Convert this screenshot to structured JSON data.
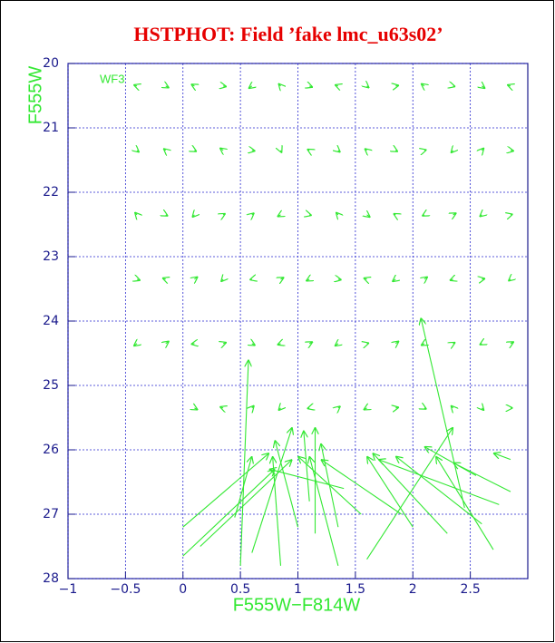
{
  "chart_data": {
    "type": "quiver",
    "title": "HSTPHOT: Field ’fake lmc_u63s02’",
    "x_label": "F555W−F814W",
    "y_label": "F555W",
    "annotation": "WF3",
    "color": "#33e833",
    "grid": true,
    "xlim": [
      -1,
      3
    ],
    "ylim": [
      28,
      20
    ],
    "xticks": [
      {
        "value": -1,
        "label": "−1"
      },
      {
        "value": -0.5,
        "label": "−0.5"
      },
      0,
      0.5,
      1,
      1.5,
      2,
      2.5
    ],
    "yticks": [
      20,
      21,
      22,
      23,
      24,
      25,
      26,
      27,
      28
    ],
    "x": [
      -0.4,
      -0.15,
      0.1,
      0.35,
      0.6,
      0.85,
      1.1,
      1.35,
      1.6,
      1.85,
      2.1,
      2.35,
      2.6,
      2.85,
      -0.4,
      -0.15,
      0.1,
      0.35,
      0.6,
      0.85,
      1.1,
      1.35,
      1.6,
      1.85,
      2.1,
      2.35,
      2.6,
      2.85,
      -0.4,
      -0.15,
      0.1,
      0.35,
      0.6,
      0.85,
      1.1,
      1.35,
      1.6,
      1.85,
      2.1,
      2.35,
      2.6,
      2.85,
      -0.4,
      -0.15,
      0.1,
      0.35,
      0.6,
      0.85,
      1.1,
      1.35,
      1.6,
      1.85,
      2.1,
      2.35,
      2.6,
      2.85,
      -0.4,
      -0.15,
      0.1,
      0.35,
      0.6,
      0.85,
      1.1,
      1.35,
      1.6,
      1.85,
      2.1,
      2.35,
      2.6,
      2.85,
      0.1,
      0.35,
      0.6,
      0.85,
      1.1,
      1.35,
      1.6,
      1.85,
      2.1,
      2.35,
      2.6,
      2.85,
      0.5,
      2.45,
      0.0,
      0.0,
      0.15,
      0.85,
      0.6,
      1.0,
      1.35,
      1.15,
      1.55,
      1.35,
      1.4,
      1.6,
      2.0,
      2.7,
      2.75,
      2.6,
      2.85,
      2.55,
      2.85,
      1.9,
      0.45,
      1.1,
      2.3
    ],
    "y": [
      20.35,
      20.35,
      20.35,
      20.35,
      20.35,
      20.35,
      20.35,
      20.35,
      20.35,
      20.35,
      20.35,
      20.35,
      20.35,
      20.35,
      21.35,
      21.35,
      21.35,
      21.35,
      21.35,
      21.35,
      21.35,
      21.35,
      21.35,
      21.35,
      21.35,
      21.35,
      21.35,
      21.35,
      22.35,
      22.35,
      22.35,
      22.35,
      22.35,
      22.35,
      22.35,
      22.35,
      22.35,
      22.35,
      22.35,
      22.35,
      22.35,
      22.35,
      23.35,
      23.35,
      23.35,
      23.35,
      23.35,
      23.35,
      23.35,
      23.35,
      23.35,
      23.35,
      23.35,
      23.35,
      23.35,
      23.35,
      24.35,
      24.35,
      24.35,
      24.35,
      24.35,
      24.35,
      24.35,
      24.35,
      24.35,
      24.35,
      24.35,
      24.35,
      24.35,
      24.35,
      25.35,
      25.35,
      25.35,
      25.35,
      25.35,
      25.35,
      25.35,
      25.35,
      25.35,
      25.35,
      25.35,
      25.35,
      27.8,
      26.9,
      27.2,
      27.65,
      27.5,
      27.8,
      27.6,
      27.2,
      27.8,
      27.3,
      27.0,
      27.2,
      26.6,
      27.7,
      27.2,
      27.55,
      26.85,
      27.15,
      26.65,
      26.4,
      26.15,
      27.0,
      27.05,
      26.8,
      27.3
    ],
    "x_end": [
      -0.43,
      -0.12,
      0.07,
      0.38,
      0.57,
      0.83,
      1.13,
      1.32,
      1.62,
      1.88,
      2.07,
      2.37,
      2.63,
      2.82,
      -0.38,
      -0.17,
      0.12,
      0.32,
      0.63,
      0.86,
      1.08,
      1.37,
      1.58,
      1.87,
      2.12,
      2.33,
      2.62,
      2.88,
      -0.42,
      -0.13,
      0.08,
      0.37,
      0.62,
      0.82,
      1.12,
      1.33,
      1.63,
      1.83,
      2.08,
      2.38,
      2.58,
      2.87,
      -0.37,
      -0.18,
      0.13,
      0.33,
      0.58,
      0.88,
      1.07,
      1.38,
      1.57,
      1.82,
      2.13,
      2.32,
      2.63,
      2.83,
      -0.43,
      -0.12,
      0.07,
      0.38,
      0.63,
      0.82,
      1.13,
      1.32,
      1.62,
      1.88,
      2.07,
      2.37,
      2.58,
      2.88,
      0.13,
      0.32,
      0.62,
      0.83,
      1.08,
      1.37,
      1.57,
      1.88,
      2.12,
      2.33,
      2.62,
      2.87,
      0.57,
      2.07,
      0.75,
      0.8,
      0.95,
      0.78,
      0.95,
      0.8,
      1.1,
      1.15,
      1.0,
      1.2,
      0.75,
      2.35,
      1.6,
      2.2,
      1.7,
      1.85,
      2.35,
      2.1,
      2.7,
      1.2,
      0.6,
      1.05,
      1.65
    ],
    "y_end": [
      20.33,
      20.38,
      20.32,
      20.36,
      20.39,
      20.31,
      20.37,
      20.33,
      20.38,
      20.34,
      20.31,
      20.36,
      20.39,
      20.33,
      21.38,
      21.32,
      21.37,
      21.31,
      21.36,
      21.39,
      21.33,
      21.38,
      21.32,
      21.37,
      21.34,
      21.39,
      21.31,
      21.36,
      22.31,
      22.37,
      22.39,
      22.33,
      22.32,
      22.38,
      22.36,
      22.31,
      22.39,
      22.33,
      22.37,
      22.32,
      22.38,
      22.34,
      23.37,
      23.33,
      23.31,
      23.39,
      23.36,
      23.32,
      23.38,
      23.36,
      23.33,
      23.39,
      23.31,
      23.37,
      23.34,
      23.38,
      24.39,
      24.31,
      24.36,
      24.33,
      24.38,
      24.37,
      24.32,
      24.39,
      24.34,
      24.31,
      24.38,
      24.33,
      24.37,
      24.32,
      25.38,
      25.33,
      25.31,
      25.39,
      25.36,
      25.32,
      25.38,
      25.34,
      25.37,
      25.31,
      25.39,
      25.35,
      24.6,
      23.95,
      26.05,
      26.3,
      26.15,
      26.1,
      25.65,
      25.85,
      26.1,
      25.65,
      26.1,
      25.9,
      26.3,
      25.65,
      26.1,
      26.1,
      26.15,
      26.1,
      26.2,
      25.95,
      26.05,
      26.15,
      26.1,
      25.7,
      26.05
    ]
  }
}
